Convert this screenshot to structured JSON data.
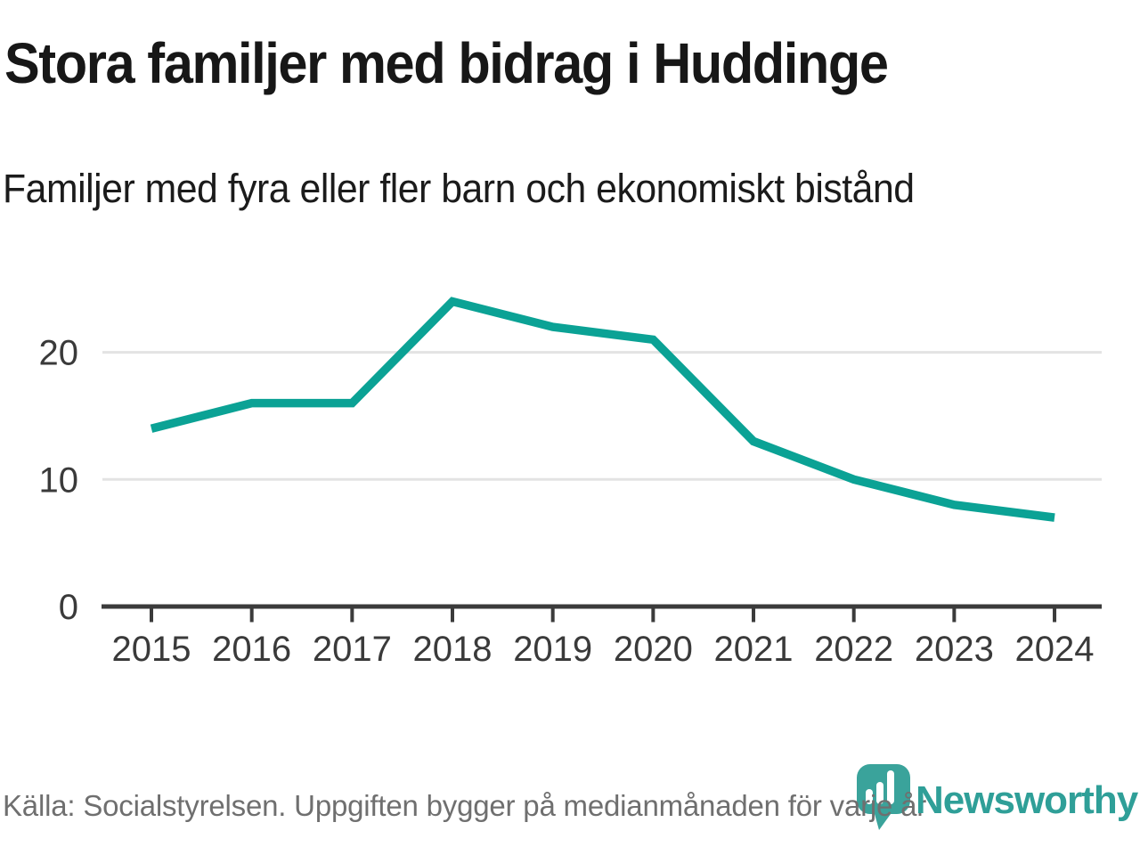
{
  "header": {
    "title": "Stora familjer med bidrag i Huddinge",
    "subtitle": "Familjer med fyra eller fler barn och ekonomiskt bistånd"
  },
  "chart_data": {
    "type": "line",
    "title": "Stora familjer med bidrag i Huddinge",
    "subtitle": "Familjer med fyra eller fler barn och ekonomiskt bistånd",
    "categories": [
      "2015",
      "2016",
      "2017",
      "2018",
      "2019",
      "2020",
      "2021",
      "2022",
      "2023",
      "2024"
    ],
    "series": [
      {
        "name": "Familjer med fyra eller fler barn och ekonomiskt bistånd",
        "values": [
          14,
          16,
          16,
          24,
          22,
          21,
          13,
          10,
          8,
          7
        ]
      }
    ],
    "xlabel": "",
    "ylabel": "",
    "ylim": [
      0,
      26
    ],
    "yticks": [
      0,
      10,
      20
    ],
    "grid": "horizontal",
    "legend": "none",
    "line_color": "#0ba295"
  },
  "footer": {
    "source": "Källa: Socialstyrelsen. Uppgiften bygger på medianmånaden för varje år",
    "brand": "Newsworthy",
    "logo_icon": "bar-chart-pin-icon"
  },
  "colors": {
    "line": "#0ba295",
    "gridline": "#e3e3e3",
    "axis": "#3b3b3b",
    "tick_text": "#3a3a3a",
    "title_text": "#171717",
    "muted_text": "#6f6f6f",
    "brand_teal": "#2f9f98",
    "logo_bar_white": "#ffffff"
  }
}
